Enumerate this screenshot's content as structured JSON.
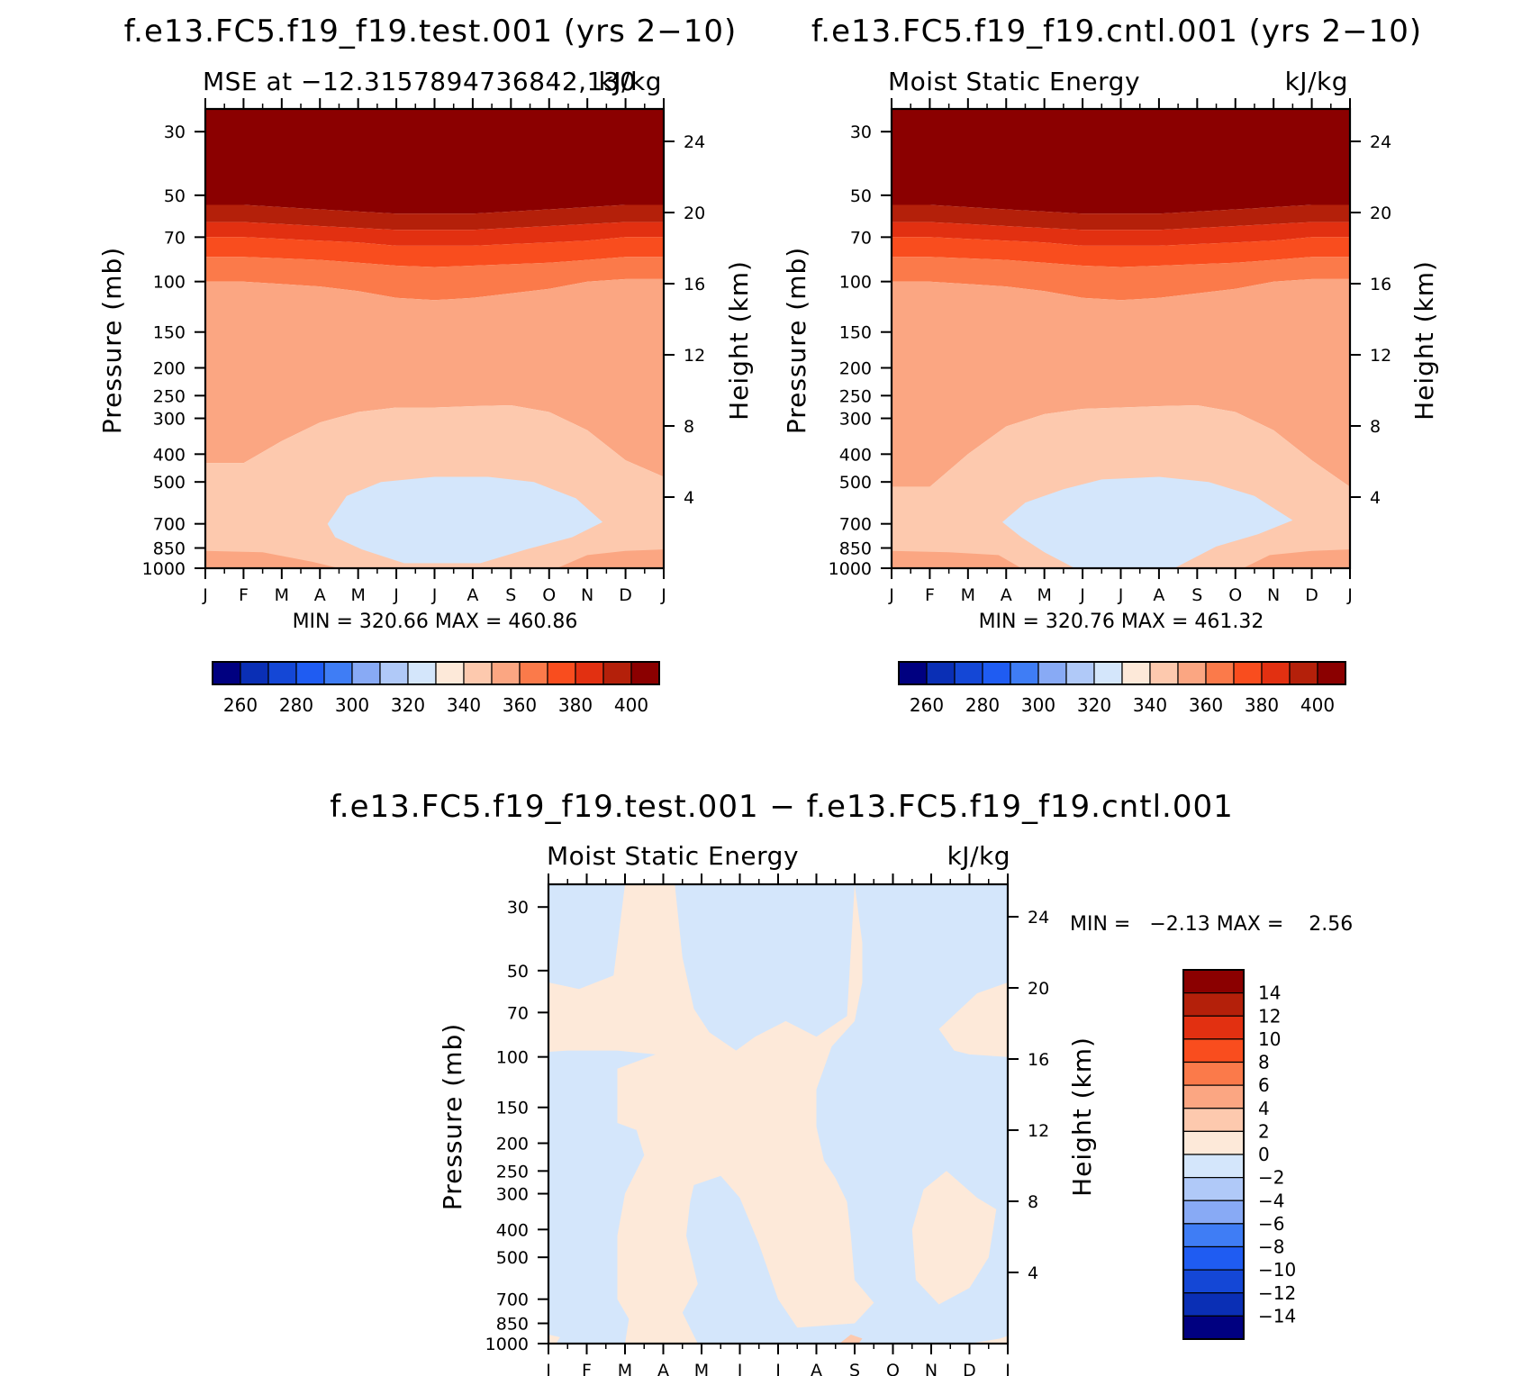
{
  "panel_titles": {
    "test": "f.e13.FC5.f19_f19.test.001 (yrs 2−10)",
    "cntl": "f.e13.FC5.f19_f19.cntl.001 (yrs 2−10)",
    "diff": "f.e13.FC5.f19_f19.test.001 − f.e13.FC5.f19_f19.cntl.001"
  },
  "colors": {
    "abs_levels": [
      "#000080",
      "#0a2fb5",
      "#1447d6",
      "#1f5cf2",
      "#3f7df5",
      "#88aaf5",
      "#b0c9f8",
      "#d4e6fb",
      "#fde9d9",
      "#fdc9ae",
      "#fba682",
      "#fb7a4a",
      "#f94d1e",
      "#e23011",
      "#b4200a",
      "#8b0000"
    ],
    "diff_levels": [
      "#000080",
      "#0a2fb5",
      "#1447d6",
      "#1f5cf2",
      "#3f7df5",
      "#88aaf5",
      "#b0c9f8",
      "#d4e6fb",
      "#fde9d9",
      "#fdc9ae",
      "#fba682",
      "#fb7a4a",
      "#f94d1e",
      "#e23011",
      "#b4200a",
      "#8b0000"
    ]
  },
  "chart_data": [
    {
      "type": "heatmap",
      "title": "MSE at −12.3157894736842,130",
      "units": "kJ/kg",
      "xlabel": "",
      "ylabel": "Pressure (mb)",
      "ylabel_right": "Height (km)",
      "x_ticks": [
        "J",
        "F",
        "M",
        "A",
        "M",
        "J",
        "J",
        "A",
        "S",
        "O",
        "N",
        "D",
        "J"
      ],
      "y_ticks": [
        30,
        50,
        70,
        100,
        150,
        200,
        250,
        300,
        400,
        500,
        700,
        850,
        1000
      ],
      "y_ticks_right": [
        24,
        20,
        16,
        12,
        8,
        4
      ],
      "y_scale": "log",
      "ylim": [
        1000,
        25
      ],
      "stats": "MIN = 320.66 MAX = 460.86",
      "colorbar_labels": [
        "260",
        "280",
        "300",
        "320",
        "340",
        "360",
        "380",
        "400"
      ],
      "levels": [
        250,
        260,
        270,
        280,
        290,
        300,
        310,
        320,
        330,
        340,
        350,
        360,
        370,
        380,
        390,
        400
      ],
      "bands": [
        {
          "class": 15,
          "bottom": [
            54,
            54,
            55,
            56,
            57,
            58,
            58,
            58,
            57,
            56,
            55,
            54,
            54
          ]
        },
        {
          "class": 14,
          "bottom": [
            62,
            62,
            63,
            64,
            65,
            66,
            66,
            66,
            65,
            64,
            63,
            62,
            62
          ]
        },
        {
          "class": 13,
          "bottom": [
            70,
            70,
            71,
            72,
            73,
            75,
            75,
            75,
            74,
            73,
            72,
            70,
            70
          ]
        },
        {
          "class": 12,
          "bottom": [
            82,
            82,
            83,
            84,
            86,
            88,
            89,
            88,
            87,
            86,
            84,
            82,
            82
          ]
        },
        {
          "class": 11,
          "bottom": [
            100,
            100,
            102,
            104,
            108,
            114,
            116,
            114,
            110,
            106,
            100,
            98,
            98
          ]
        },
        {
          "class": 10,
          "bottom": [
            430,
            430,
            360,
            310,
            285,
            275,
            275,
            272,
            270,
            285,
            330,
            420,
            480
          ]
        },
        {
          "class": 9,
          "bottom": [
            1000,
            1000,
            1000,
            1000,
            1000,
            1000,
            1000,
            1000,
            1000,
            1000,
            1000,
            1000,
            1000
          ]
        }
      ],
      "overlays": [
        {
          "class": 7,
          "points": [
            [
              3.2,
              700
            ],
            [
              3.7,
              560
            ],
            [
              4.6,
              500
            ],
            [
              6.0,
              480
            ],
            [
              7.4,
              480
            ],
            [
              8.6,
              500
            ],
            [
              9.7,
              570
            ],
            [
              10.4,
              690
            ],
            [
              9.6,
              780
            ],
            [
              8.4,
              860
            ],
            [
              7.2,
              960
            ],
            [
              5.2,
              960
            ],
            [
              4.1,
              860
            ],
            [
              3.4,
              780
            ]
          ]
        },
        {
          "class": 10,
          "points": [
            [
              0,
              870
            ],
            [
              0,
              1000
            ],
            [
              3.5,
              1000
            ],
            [
              2.8,
              950
            ],
            [
              1.5,
              880
            ]
          ]
        },
        {
          "class": 10,
          "points": [
            [
              9.2,
              1000
            ],
            [
              10.0,
              900
            ],
            [
              11.0,
              870
            ],
            [
              12.0,
              860
            ],
            [
              12,
              1000
            ]
          ]
        }
      ]
    },
    {
      "type": "heatmap",
      "title": "Moist Static Energy",
      "units": "kJ/kg",
      "xlabel": "",
      "ylabel": "Pressure (mb)",
      "ylabel_right": "Height (km)",
      "x_ticks": [
        "J",
        "F",
        "M",
        "A",
        "M",
        "J",
        "J",
        "A",
        "S",
        "O",
        "N",
        "D",
        "J"
      ],
      "y_ticks": [
        30,
        50,
        70,
        100,
        150,
        200,
        250,
        300,
        400,
        500,
        700,
        850,
        1000
      ],
      "y_ticks_right": [
        24,
        20,
        16,
        12,
        8,
        4
      ],
      "y_scale": "log",
      "ylim": [
        1000,
        25
      ],
      "stats": "MIN = 320.76 MAX = 461.32",
      "colorbar_labels": [
        "260",
        "280",
        "300",
        "320",
        "340",
        "360",
        "380",
        "400"
      ],
      "levels": [
        250,
        260,
        270,
        280,
        290,
        300,
        310,
        320,
        330,
        340,
        350,
        360,
        370,
        380,
        390,
        400
      ],
      "bands": [
        {
          "class": 15,
          "bottom": [
            54,
            54,
            55,
            56,
            57,
            58,
            58,
            58,
            57,
            56,
            55,
            54,
            54
          ]
        },
        {
          "class": 14,
          "bottom": [
            62,
            62,
            63,
            64,
            65,
            66,
            66,
            66,
            65,
            64,
            63,
            62,
            62
          ]
        },
        {
          "class": 13,
          "bottom": [
            70,
            70,
            71,
            72,
            73,
            75,
            75,
            75,
            74,
            73,
            72,
            70,
            70
          ]
        },
        {
          "class": 12,
          "bottom": [
            82,
            82,
            83,
            84,
            86,
            88,
            89,
            88,
            87,
            86,
            84,
            82,
            82
          ]
        },
        {
          "class": 11,
          "bottom": [
            100,
            100,
            102,
            104,
            108,
            114,
            116,
            114,
            110,
            106,
            100,
            98,
            98
          ]
        },
        {
          "class": 10,
          "bottom": [
            520,
            520,
            400,
            320,
            290,
            278,
            275,
            272,
            270,
            285,
            330,
            420,
            520
          ]
        },
        {
          "class": 9,
          "bottom": [
            1000,
            1000,
            1000,
            1000,
            1000,
            1000,
            1000,
            1000,
            1000,
            1000,
            1000,
            1000,
            1000
          ]
        }
      ],
      "overlays": [
        {
          "class": 7,
          "points": [
            [
              2.9,
              690
            ],
            [
              3.5,
              590
            ],
            [
              4.5,
              530
            ],
            [
              5.5,
              490
            ],
            [
              7.0,
              480
            ],
            [
              8.3,
              500
            ],
            [
              9.5,
              560
            ],
            [
              10.5,
              680
            ],
            [
              9.6,
              760
            ],
            [
              8.5,
              840
            ],
            [
              7.4,
              1000
            ],
            [
              4.8,
              1000
            ],
            [
              4.0,
              880
            ],
            [
              3.4,
              780
            ]
          ]
        },
        {
          "class": 10,
          "points": [
            [
              0,
              870
            ],
            [
              0,
              1000
            ],
            [
              3.4,
              1000
            ],
            [
              2.8,
              900
            ],
            [
              1.5,
              880
            ]
          ]
        },
        {
          "class": 10,
          "points": [
            [
              9.2,
              1000
            ],
            [
              9.9,
              900
            ],
            [
              11.0,
              870
            ],
            [
              12,
              860
            ],
            [
              12,
              1000
            ]
          ]
        }
      ]
    },
    {
      "type": "heatmap",
      "title": "Moist Static Energy",
      "units": "kJ/kg",
      "xlabel": "",
      "ylabel": "Pressure (mb)",
      "ylabel_right": "Height (km)",
      "x_ticks": [
        "J",
        "F",
        "M",
        "A",
        "M",
        "J",
        "J",
        "A",
        "S",
        "O",
        "N",
        "D",
        "J"
      ],
      "y_ticks": [
        30,
        50,
        70,
        100,
        150,
        200,
        250,
        300,
        400,
        500,
        700,
        850,
        1000
      ],
      "y_ticks_right": [
        24,
        20,
        16,
        12,
        8,
        4
      ],
      "y_scale": "log",
      "ylim": [
        1000,
        25
      ],
      "stats": "MIN =   −2.13 MAX =    2.56",
      "colorbar_labels": [
        "14",
        "12",
        "10",
        "8",
        "6",
        "4",
        "2",
        "0",
        "−2",
        "−4",
        "−6",
        "−8",
        "−10",
        "−12",
        "−14"
      ],
      "levels": [
        -14,
        -12,
        -10,
        -8,
        -6,
        -4,
        -2,
        0,
        2,
        4,
        6,
        8,
        10,
        12,
        14
      ],
      "background_class": 7,
      "overlays": [
        {
          "class": 8,
          "points": [
            [
              0,
              55
            ],
            [
              0.8,
              58
            ],
            [
              1.7,
              52
            ],
            [
              2.0,
              25
            ],
            [
              3.3,
              25
            ],
            [
              3.5,
              45
            ],
            [
              3.8,
              68
            ],
            [
              4.2,
              82
            ],
            [
              4.9,
              95
            ],
            [
              5.4,
              85
            ],
            [
              6.2,
              75
            ],
            [
              7.0,
              85
            ],
            [
              7.8,
              72
            ],
            [
              8.0,
              25
            ],
            [
              8.2,
              40
            ],
            [
              8.2,
              55
            ],
            [
              8.0,
              75
            ],
            [
              7.4,
              92
            ],
            [
              7.0,
              130
            ],
            [
              7.0,
              175
            ],
            [
              7.2,
              230
            ],
            [
              7.5,
              265
            ],
            [
              7.8,
              320
            ],
            [
              7.9,
              420
            ],
            [
              8.0,
              600
            ],
            [
              8.5,
              720
            ],
            [
              8.0,
              850
            ],
            [
              6.5,
              880
            ],
            [
              6.0,
              700
            ],
            [
              5.5,
              450
            ],
            [
              5.0,
              310
            ],
            [
              4.5,
              260
            ],
            [
              3.8,
              280
            ],
            [
              3.7,
              320
            ],
            [
              3.6,
              420
            ],
            [
              3.9,
              620
            ],
            [
              3.5,
              780
            ],
            [
              3.9,
              1000
            ],
            [
              2.0,
              1000
            ],
            [
              2.1,
              820
            ],
            [
              1.8,
              700
            ],
            [
              1.8,
              420
            ],
            [
              2.0,
              300
            ],
            [
              2.5,
              220
            ],
            [
              2.3,
              180
            ],
            [
              1.8,
              170
            ],
            [
              1.8,
              110
            ],
            [
              2.8,
              98
            ],
            [
              1.8,
              95
            ],
            [
              0.5,
              95
            ],
            [
              0,
              96
            ]
          ]
        },
        {
          "class": 8,
          "points": [
            [
              0,
              930
            ],
            [
              0.3,
              950
            ],
            [
              0.2,
              1000
            ],
            [
              0,
              1000
            ]
          ]
        },
        {
          "class": 8,
          "points": [
            [
              9.8,
              290
            ],
            [
              10.4,
              250
            ],
            [
              11.2,
              310
            ],
            [
              11.7,
              340
            ],
            [
              11.5,
              500
            ],
            [
              11.0,
              640
            ],
            [
              10.2,
              730
            ],
            [
              9.6,
              600
            ],
            [
              9.5,
              400
            ]
          ]
        },
        {
          "class": 8,
          "points": [
            [
              10.2,
              80
            ],
            [
              11.2,
              60
            ],
            [
              12,
              55
            ],
            [
              12,
              100
            ],
            [
              11.0,
              98
            ],
            [
              10.6,
              95
            ]
          ]
        },
        {
          "class": 8,
          "points": [
            [
              11.0,
              1000
            ],
            [
              11.8,
              960
            ],
            [
              12,
              940
            ],
            [
              12,
              1000
            ]
          ]
        },
        {
          "class": 9,
          "points": [
            [
              7.6,
              1000
            ],
            [
              7.9,
              930
            ],
            [
              8.2,
              960
            ],
            [
              8.1,
              1000
            ]
          ]
        }
      ]
    }
  ]
}
